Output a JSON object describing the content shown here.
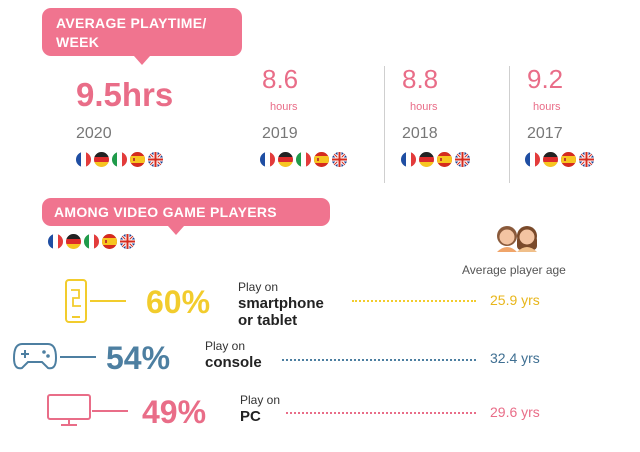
{
  "header": {
    "bubble_line1": "AVERAGE PLAYTIME/",
    "bubble_line2": "WEEK"
  },
  "years": [
    {
      "value": "9.5hrs",
      "year": "2020",
      "flags": [
        "fr",
        "de",
        "it",
        "es",
        "uk"
      ]
    },
    {
      "value": "8.6",
      "unit": "hours",
      "year": "2019",
      "flags": [
        "fr",
        "de",
        "it",
        "es",
        "uk"
      ]
    },
    {
      "value": "8.8",
      "unit": "hours",
      "year": "2018",
      "flags": [
        "fr",
        "de",
        "es",
        "uk"
      ]
    },
    {
      "value": "9.2",
      "unit": "hours",
      "year": "2017",
      "flags": [
        "fr",
        "de",
        "es",
        "uk"
      ]
    }
  ],
  "players": {
    "bubble": "AMONG VIDEO GAME PLAYERS",
    "flags": [
      "fr",
      "de",
      "it",
      "es",
      "uk"
    ],
    "age_title": "Average player age",
    "rows": [
      {
        "icon": "smartphone-icon",
        "pct": "60%",
        "line1": "Play on",
        "line2": "smartphone",
        "line3": "or tablet",
        "age": "25.9 yrs",
        "color": "#f2cc2d",
        "age_color": "#e8b61b"
      },
      {
        "icon": "gamepad-icon",
        "pct": "54%",
        "line1": "Play on",
        "line2": "console",
        "age": "32.4 yrs",
        "color": "#4d7fa1",
        "age_color": "#3f6f92"
      },
      {
        "icon": "monitor-icon",
        "pct": "49%",
        "line1": "Play on",
        "line2": "PC",
        "age": "29.6 yrs",
        "color": "#e96d88",
        "age_color": "#e96d88"
      }
    ]
  },
  "colors": {
    "pink": "#f0748f",
    "yellow": "#f2cc2d",
    "blue": "#4d7fa1"
  }
}
